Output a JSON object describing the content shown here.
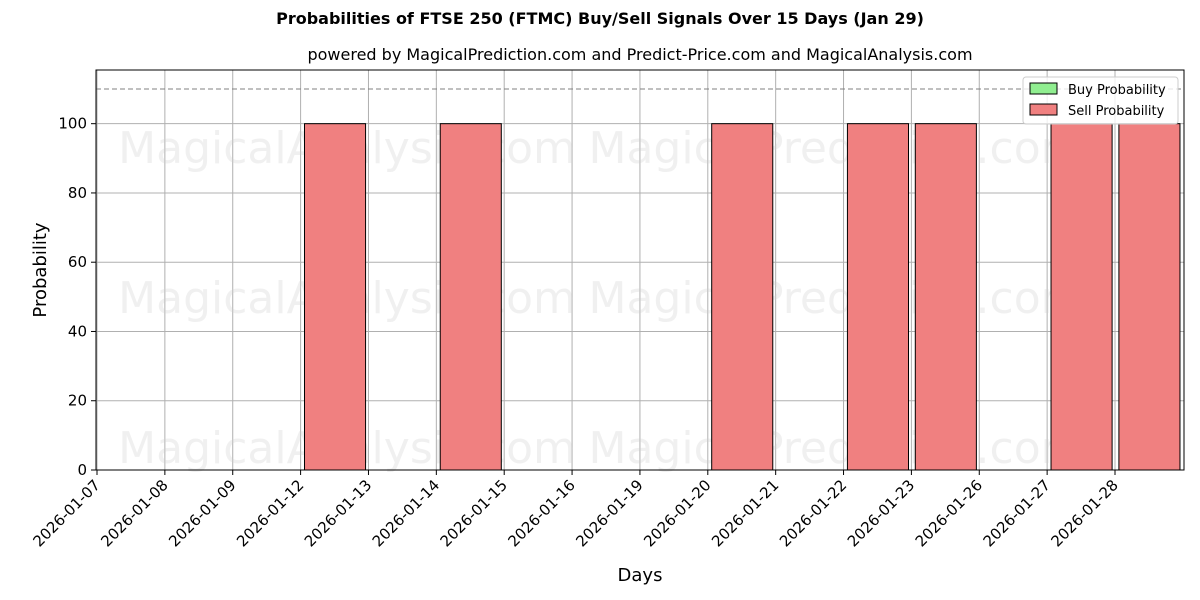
{
  "chart_data": {
    "type": "bar",
    "title": "Probabilities of FTSE 250 (FTMC) Buy/Sell Signals Over 15 Days (Jan 29)",
    "subtitle": "powered by MagicalPrediction.com and Predict-Price.com and MagicalAnalysis.com",
    "xlabel": "Days",
    "ylabel": "Probability",
    "ylim": [
      0,
      115.5
    ],
    "yticks": [
      0,
      20,
      40,
      60,
      80,
      100
    ],
    "categories": [
      "2026-01-07",
      "2026-01-08",
      "2026-01-09",
      "2026-01-12",
      "2026-01-13",
      "2026-01-14",
      "2026-01-15",
      "2026-01-16",
      "2026-01-19",
      "2026-01-20",
      "2026-01-21",
      "2026-01-22",
      "2026-01-23",
      "2026-01-26",
      "2026-01-27",
      "2026-01-28"
    ],
    "series": [
      {
        "name": "Buy Probability",
        "color": "#90ee90",
        "values": [
          0,
          0,
          0,
          0,
          0,
          0,
          0,
          0,
          0,
          0,
          0,
          0,
          0,
          0,
          0,
          0
        ]
      },
      {
        "name": "Sell Probability",
        "color": "#f08080",
        "values": [
          0,
          0,
          0,
          100,
          0,
          100,
          0,
          0,
          0,
          100,
          0,
          100,
          100,
          0,
          100,
          100
        ]
      }
    ],
    "reference_line": 110,
    "grid": true,
    "legend_position": "top-right"
  },
  "watermarks": [
    "MagicalAnalysis.com",
    "MagicalPrediction.com"
  ]
}
